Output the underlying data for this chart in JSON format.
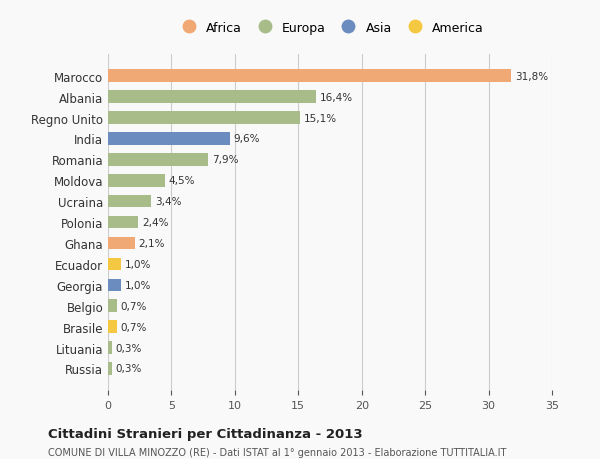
{
  "countries": [
    "Marocco",
    "Albania",
    "Regno Unito",
    "India",
    "Romania",
    "Moldova",
    "Ucraina",
    "Polonia",
    "Ghana",
    "Ecuador",
    "Georgia",
    "Belgio",
    "Brasile",
    "Lituania",
    "Russia"
  ],
  "values": [
    31.8,
    16.4,
    15.1,
    9.6,
    7.9,
    4.5,
    3.4,
    2.4,
    2.1,
    1.0,
    1.0,
    0.7,
    0.7,
    0.3,
    0.3
  ],
  "labels": [
    "31,8%",
    "16,4%",
    "15,1%",
    "9,6%",
    "7,9%",
    "4,5%",
    "3,4%",
    "2,4%",
    "2,1%",
    "1,0%",
    "1,0%",
    "0,7%",
    "0,7%",
    "0,3%",
    "0,3%"
  ],
  "continents": [
    "Africa",
    "Europa",
    "Europa",
    "Asia",
    "Europa",
    "Europa",
    "Europa",
    "Europa",
    "Africa",
    "America",
    "Asia",
    "Europa",
    "America",
    "Europa",
    "Europa"
  ],
  "colors": {
    "Africa": "#F0A875",
    "Europa": "#A8BC8A",
    "Asia": "#6B8CBE",
    "America": "#F5C842"
  },
  "bar_colors": [
    "#F0A875",
    "#A8BC8A",
    "#A8BC8A",
    "#6B8CBE",
    "#A8BC8A",
    "#A8BC8A",
    "#A8BC8A",
    "#A8BC8A",
    "#F0A875",
    "#F5C842",
    "#6B8CBE",
    "#A8BC8A",
    "#F5C842",
    "#A8BC8A",
    "#A8BC8A"
  ],
  "xlim": [
    0,
    35
  ],
  "xticks": [
    0,
    5,
    10,
    15,
    20,
    25,
    30,
    35
  ],
  "title": "Cittadini Stranieri per Cittadinanza - 2013",
  "subtitle": "COMUNE DI VILLA MINOZZO (RE) - Dati ISTAT al 1° gennaio 2013 - Elaborazione TUTTITALIA.IT",
  "legend_order": [
    "Africa",
    "Europa",
    "Asia",
    "America"
  ],
  "background_color": "#f9f9f9",
  "grid_color": "#cccccc"
}
